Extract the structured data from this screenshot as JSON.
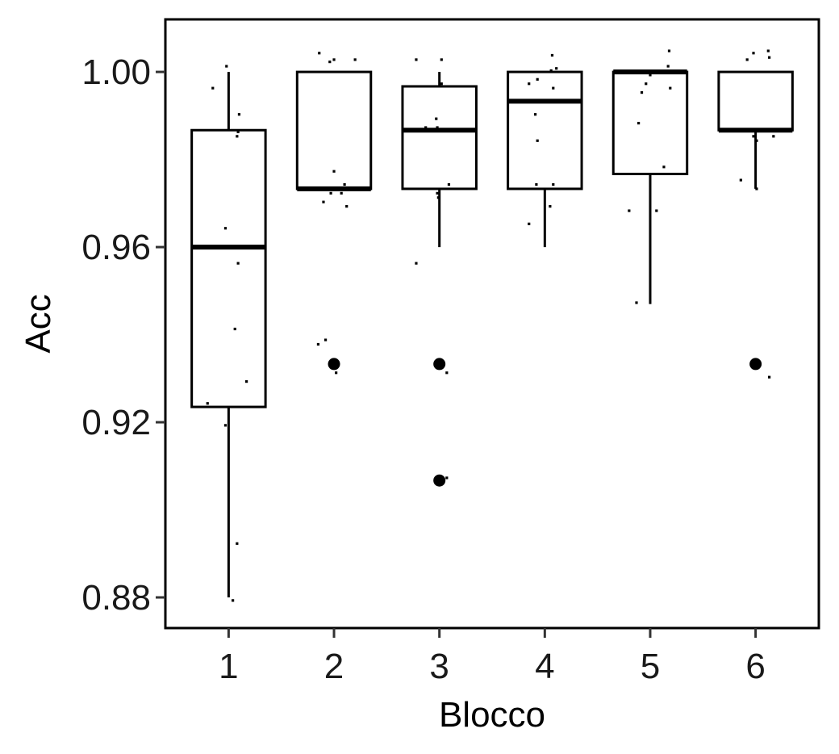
{
  "chart_data": {
    "type": "boxplot",
    "xlabel": "Blocco",
    "ylabel": "Acc",
    "categories": [
      "1",
      "2",
      "3",
      "4",
      "5",
      "6"
    ],
    "ylim": [
      0.873,
      1.012
    ],
    "yticks": [
      0.88,
      0.92,
      0.96,
      1.0
    ],
    "ytick_labels": [
      "0.88",
      "0.92",
      "0.96",
      "1.00"
    ],
    "grid": false,
    "legend": "none",
    "boxes": [
      {
        "category": "1",
        "whisker_low": 0.88,
        "q1": 0.9235,
        "median": 0.96,
        "q3": 0.9867,
        "whisker_high": 1.0,
        "outliers": []
      },
      {
        "category": "2",
        "whisker_low": 0.9733,
        "q1": 0.9733,
        "median": 0.9733,
        "q3": 1.0,
        "whisker_high": 1.0,
        "outliers": [
          0.9333
        ]
      },
      {
        "category": "3",
        "whisker_low": 0.96,
        "q1": 0.9733,
        "median": 0.9867,
        "q3": 0.9967,
        "whisker_high": 1.0,
        "outliers": [
          0.9333,
          0.9067
        ]
      },
      {
        "category": "4",
        "whisker_low": 0.96,
        "q1": 0.9733,
        "median": 0.9933,
        "q3": 1.0,
        "whisker_high": 1.0,
        "outliers": []
      },
      {
        "category": "5",
        "whisker_low": 0.947,
        "q1": 0.9767,
        "median": 1.0,
        "q3": 1.0,
        "whisker_high": 1.0,
        "outliers": []
      },
      {
        "category": "6",
        "whisker_low": 0.9733,
        "q1": 0.9867,
        "median": 0.9867,
        "q3": 1.0,
        "whisker_high": 1.0,
        "outliers": [
          0.9333
        ]
      }
    ],
    "jitter_points": [
      {
        "x": 0.85,
        "y": 0.9963
      },
      {
        "x": 0.98,
        "y": 1.0013
      },
      {
        "x": 1.1,
        "y": 0.9903
      },
      {
        "x": 1.08,
        "y": 0.9853
      },
      {
        "x": 1.09,
        "y": 0.9863
      },
      {
        "x": 0.97,
        "y": 0.9643
      },
      {
        "x": 1.09,
        "y": 0.9563
      },
      {
        "x": 1.06,
        "y": 0.9413
      },
      {
        "x": 1.17,
        "y": 0.9293
      },
      {
        "x": 0.8,
        "y": 0.9243
      },
      {
        "x": 0.97,
        "y": 0.9193
      },
      {
        "x": 1.08,
        "y": 0.8923
      },
      {
        "x": 1.04,
        "y": 0.8793
      },
      {
        "x": 1.86,
        "y": 1.0043
      },
      {
        "x": 1.96,
        "y": 1.0023
      },
      {
        "x": 2.0,
        "y": 1.0028
      },
      {
        "x": 2.2,
        "y": 1.0028
      },
      {
        "x": 2.0,
        "y": 0.9773
      },
      {
        "x": 2.1,
        "y": 0.9743
      },
      {
        "x": 1.9,
        "y": 0.9703
      },
      {
        "x": 1.97,
        "y": 0.9723
      },
      {
        "x": 2.07,
        "y": 0.9723
      },
      {
        "x": 2.12,
        "y": 0.9693
      },
      {
        "x": 1.85,
        "y": 0.9378
      },
      {
        "x": 1.92,
        "y": 0.9388
      },
      {
        "x": 2.02,
        "y": 0.9313
      },
      {
        "x": 2.78,
        "y": 1.0028
      },
      {
        "x": 3.02,
        "y": 1.0028
      },
      {
        "x": 3.02,
        "y": 0.9973
      },
      {
        "x": 2.97,
        "y": 0.9893
      },
      {
        "x": 2.87,
        "y": 0.9873
      },
      {
        "x": 2.98,
        "y": 0.9873
      },
      {
        "x": 3.09,
        "y": 0.9743
      },
      {
        "x": 2.98,
        "y": 0.9723
      },
      {
        "x": 2.99,
        "y": 0.9713
      },
      {
        "x": 2.78,
        "y": 0.9563
      },
      {
        "x": 3.07,
        "y": 0.9313
      },
      {
        "x": 3.07,
        "y": 0.9073
      },
      {
        "x": 4.07,
        "y": 1.0038
      },
      {
        "x": 4.11,
        "y": 1.0008
      },
      {
        "x": 4.06,
        "y": 1.0003
      },
      {
        "x": 3.85,
        "y": 0.9973
      },
      {
        "x": 3.93,
        "y": 0.9983
      },
      {
        "x": 4.08,
        "y": 0.9963
      },
      {
        "x": 3.91,
        "y": 0.9903
      },
      {
        "x": 3.93,
        "y": 0.9843
      },
      {
        "x": 3.92,
        "y": 0.9743
      },
      {
        "x": 4.08,
        "y": 0.9743
      },
      {
        "x": 4.05,
        "y": 0.9693
      },
      {
        "x": 3.85,
        "y": 0.9653
      },
      {
        "x": 5.18,
        "y": 1.0048
      },
      {
        "x": 5.17,
        "y": 1.0013
      },
      {
        "x": 5.0,
        "y": 0.9993
      },
      {
        "x": 4.96,
        "y": 0.9973
      },
      {
        "x": 5.19,
        "y": 0.9963
      },
      {
        "x": 4.92,
        "y": 0.9953
      },
      {
        "x": 4.89,
        "y": 0.9883
      },
      {
        "x": 5.13,
        "y": 0.9783
      },
      {
        "x": 5.06,
        "y": 0.9683
      },
      {
        "x": 4.8,
        "y": 0.9683
      },
      {
        "x": 4.87,
        "y": 0.9473
      },
      {
        "x": 5.92,
        "y": 1.0028
      },
      {
        "x": 5.98,
        "y": 1.0043
      },
      {
        "x": 6.12,
        "y": 1.0048
      },
      {
        "x": 6.13,
        "y": 1.0033
      },
      {
        "x": 5.98,
        "y": 0.9853
      },
      {
        "x": 6.01,
        "y": 0.9843
      },
      {
        "x": 6.17,
        "y": 0.9853
      },
      {
        "x": 5.86,
        "y": 0.9753
      },
      {
        "x": 6.01,
        "y": 0.9733
      },
      {
        "x": 6.13,
        "y": 0.9303
      }
    ]
  }
}
